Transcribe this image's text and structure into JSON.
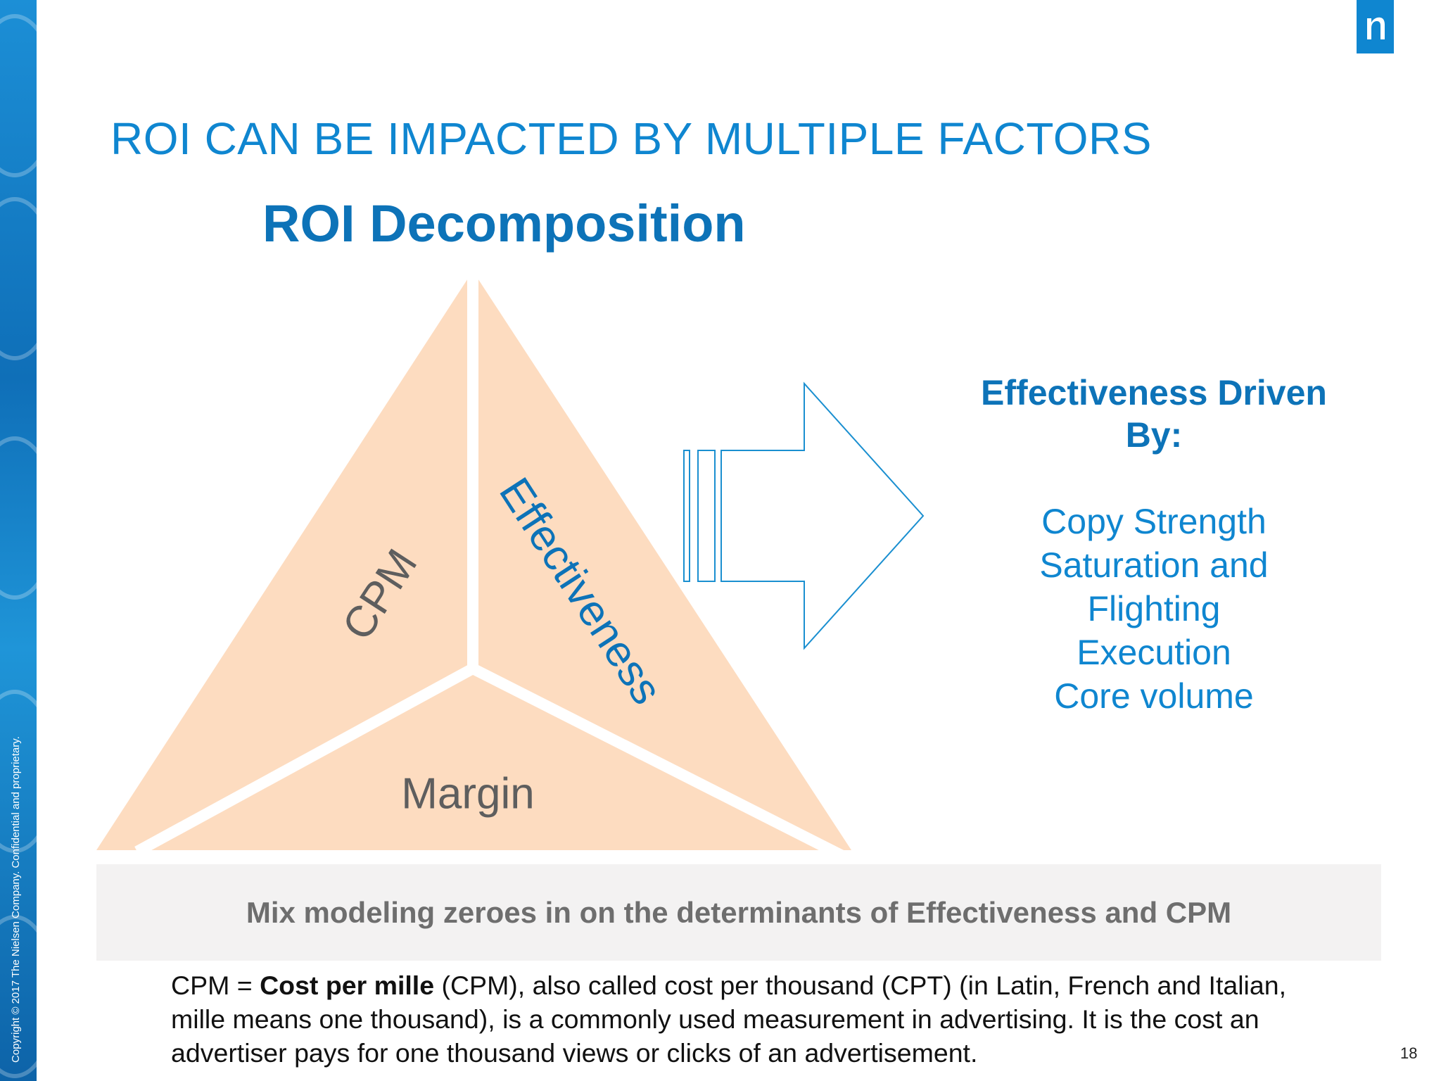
{
  "slide": {
    "title": "ROI CAN BE IMPACTED BY MULTIPLE FACTORS",
    "page_number": "18",
    "copyright": "Copyright © 2017 The Nielsen Company. Confidential and proprietary.",
    "logo_glyph": "n",
    "accent_color": "#0f86d0",
    "triangle_color": "#fddcc0"
  },
  "diagram": {
    "heading": "ROI Decomposition",
    "faces": {
      "cpm": "CPM",
      "effectiveness": "Effectiveness",
      "margin": "Margin"
    }
  },
  "drivers": {
    "heading_line1": "Effectiveness Driven",
    "heading_line2": "By:",
    "items": [
      "Copy Strength",
      "Saturation and",
      "Flighting",
      "Execution",
      "Core volume"
    ]
  },
  "banner": {
    "text": "Mix modeling zeroes in on the determinants of Effectiveness and CPM"
  },
  "footnote": {
    "prefix": "CPM = ",
    "term": "Cost per mille",
    "definition": " (CPM), also called cost per thousand (CPT) (in Latin, French and Italian, mille means one thousand), is a commonly used measurement in advertising. It is the cost an advertiser pays for one thousand views or clicks of an advertisement."
  }
}
